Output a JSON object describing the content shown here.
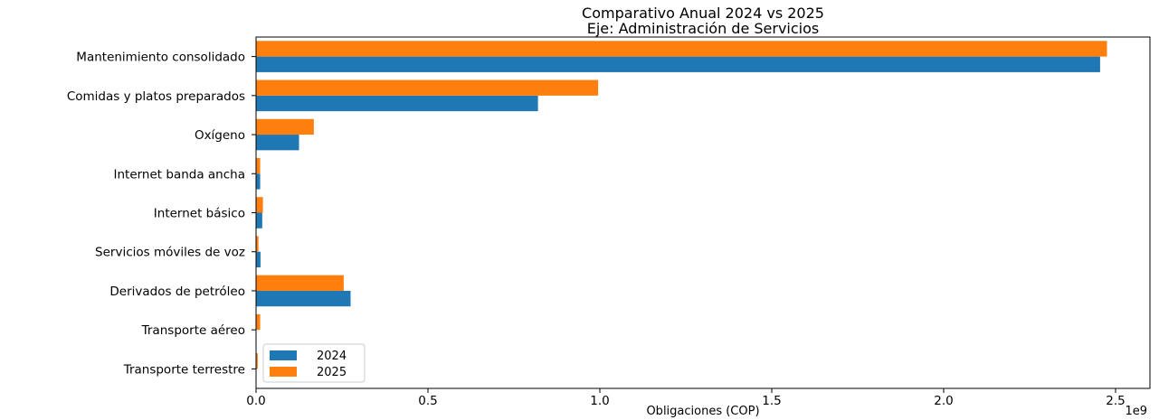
{
  "chart_data": {
    "type": "bar",
    "orientation": "horizontal",
    "title": "Comparativo Anual 2024 vs 2025",
    "subtitle": "Eje: Administración de Servicios",
    "xlabel": "Obligaciones (COP)",
    "ylabel": "",
    "x_offset_label": "1e9",
    "xlim": [
      0,
      2.6
    ],
    "x_ticks": [
      0.0,
      0.5,
      1.0,
      1.5,
      2.0,
      2.5
    ],
    "x_tick_labels": [
      "0.0",
      "0.5",
      "1.0",
      "1.5",
      "2.0",
      "2.5"
    ],
    "grid": false,
    "legend_position": "lower-left",
    "categories": [
      "Mantenimiento consolidado",
      "Comidas y platos preparados",
      "Oxígeno",
      "Internet banda ancha",
      "Internet básico",
      "Servicios móviles de voz",
      "Derivados de petróleo",
      "Transporte aéreo",
      "Transporte terrestre"
    ],
    "series": [
      {
        "name": "2024",
        "color": "#1f77b4",
        "values": [
          2.455,
          0.82,
          0.125,
          0.012,
          0.018,
          0.013,
          0.275,
          0.0,
          0.0
        ]
      },
      {
        "name": "2025",
        "color": "#ff7f0e",
        "values": [
          2.475,
          0.995,
          0.168,
          0.012,
          0.02,
          0.007,
          0.255,
          0.012,
          0.005
        ]
      }
    ]
  }
}
